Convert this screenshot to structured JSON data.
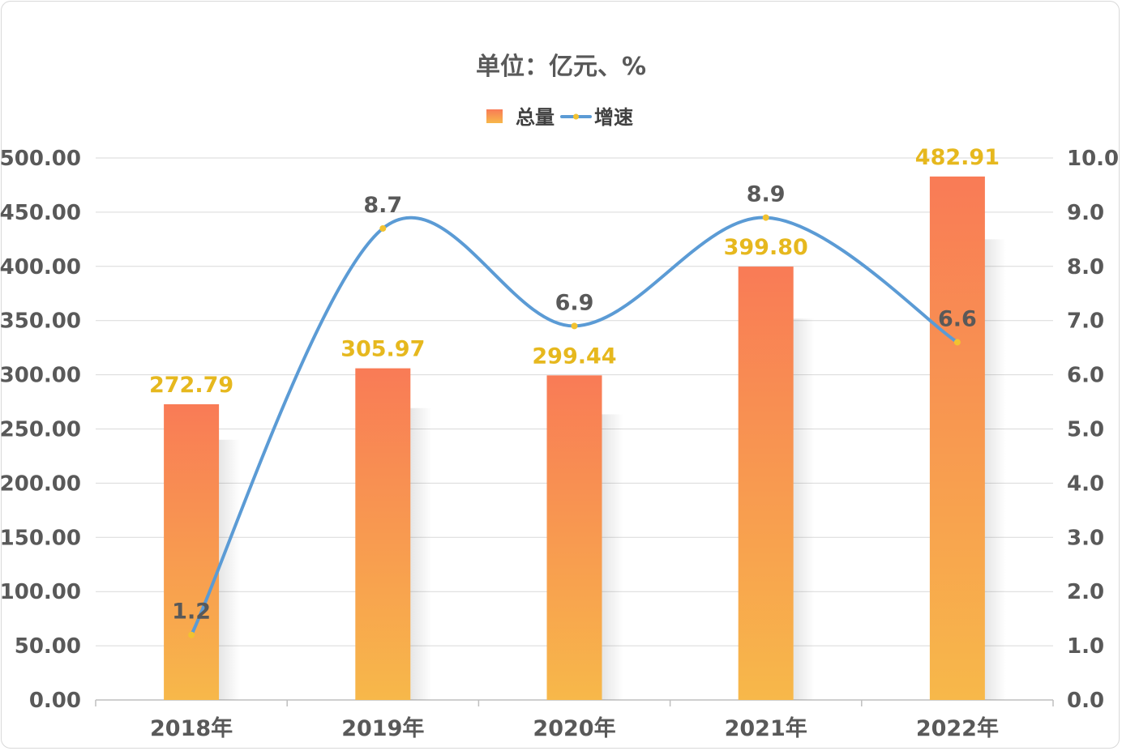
{
  "chart_data": {
    "type": "bar",
    "title": "单位：亿元、%",
    "categories": [
      "2018年",
      "2019年",
      "2020年",
      "2021年",
      "2022年"
    ],
    "series": [
      {
        "name": "总量",
        "type": "bar",
        "axis": "left",
        "values": [
          272.79,
          305.97,
          299.44,
          399.8,
          482.91
        ],
        "labels": [
          "272.79",
          "305.97",
          "299.44",
          "399.80",
          "482.91"
        ],
        "color_top": "#F97B56",
        "color_bottom": "#F7B84A",
        "label_color": "#E6B81E"
      },
      {
        "name": "增速",
        "type": "line",
        "smooth": true,
        "axis": "right",
        "values": [
          1.2,
          8.7,
          6.9,
          8.9,
          6.6
        ],
        "labels": [
          "1.2",
          "8.7",
          "6.9",
          "8.9",
          "6.6"
        ],
        "color": "#5B9BD5",
        "marker_color": "#F2C230",
        "label_color": "#595959"
      }
    ],
    "y_left": {
      "min": 0,
      "max": 500,
      "step": 50,
      "tick_labels": [
        "0.00",
        "50.00",
        "100.00",
        "150.00",
        "200.00",
        "250.00",
        "300.00",
        "350.00",
        "400.00",
        "450.00",
        "500.00"
      ]
    },
    "y_right": {
      "min": 0,
      "max": 10,
      "step": 1,
      "tick_labels": [
        "0.0",
        "1.0",
        "2.0",
        "3.0",
        "4.0",
        "5.0",
        "6.0",
        "7.0",
        "8.0",
        "9.0",
        "10.0"
      ]
    },
    "grid": true,
    "legend": "top-center",
    "gridline_color": "#D9D9D9",
    "text_color": "#595959"
  }
}
